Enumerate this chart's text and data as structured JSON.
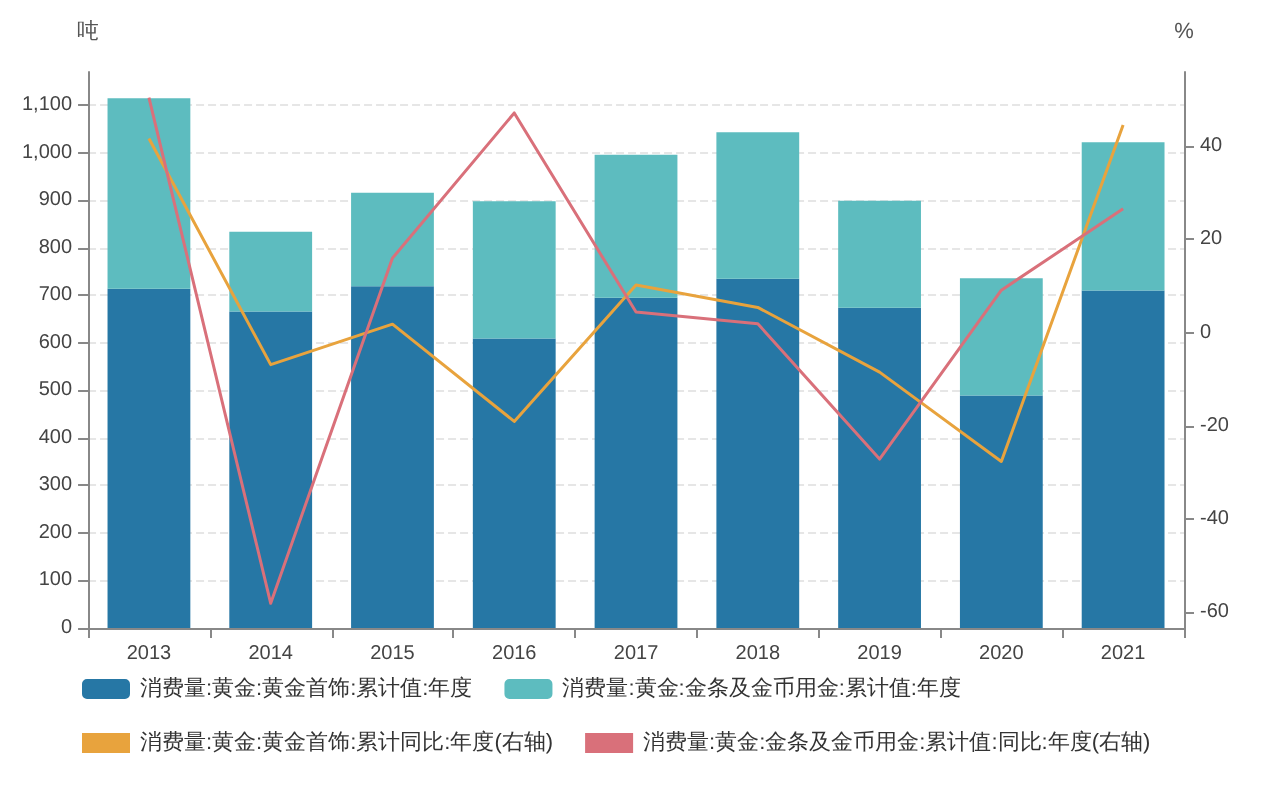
{
  "chart_data": {
    "type": "bar",
    "ylabel": "吨",
    "y2label": "%",
    "categories": [
      "2013",
      "2014",
      "2015",
      "2016",
      "2017",
      "2018",
      "2019",
      "2020",
      "2021"
    ],
    "stacked": true,
    "series": [
      {
        "name": "消费量:黄金:黄金首饰:累计值:年度",
        "color": "#2677a5",
        "values": [
          714,
          666,
          719,
          609,
          695,
          735,
          674,
          489,
          710
        ]
      },
      {
        "name": "消费量:黄金:金条及金币用金:累计值:年度",
        "color": "#5dbcbf",
        "values": [
          401,
          168,
          197,
          289,
          301,
          308,
          225,
          247,
          312
        ]
      },
      {
        "name": "消费量:黄金:黄金首饰:累计同比:年度(右轴)",
        "type": "line",
        "axis": "y2",
        "color": "#e8a33d",
        "values": [
          41.7,
          -6.9,
          1.8,
          -19.1,
          10.2,
          5.4,
          -8.5,
          -27.7,
          44.6
        ]
      },
      {
        "name": "消费量:黄金:金条及金币用金:累计值:同比:年度(右轴)",
        "type": "line",
        "axis": "y2",
        "color": "#d9707a",
        "values": [
          50.5,
          -58.2,
          16.0,
          47.2,
          4.4,
          1.9,
          -27.2,
          9.1,
          26.6
        ]
      }
    ],
    "ylim": [
      0,
      1170
    ],
    "yticks": [
      0,
      100,
      200,
      300,
      400,
      500,
      600,
      700,
      800,
      900,
      {
        "value": 1000,
        "label": "1,000"
      },
      {
        "value": 1100,
        "label": "1,100"
      }
    ],
    "y2lim": [
      -63.5,
      56
    ],
    "y2ticks": [
      -60,
      -40,
      -20,
      0,
      20,
      40
    ],
    "grid": "y",
    "legend": "bottom",
    "marker": "none",
    "line_style": "solid"
  }
}
